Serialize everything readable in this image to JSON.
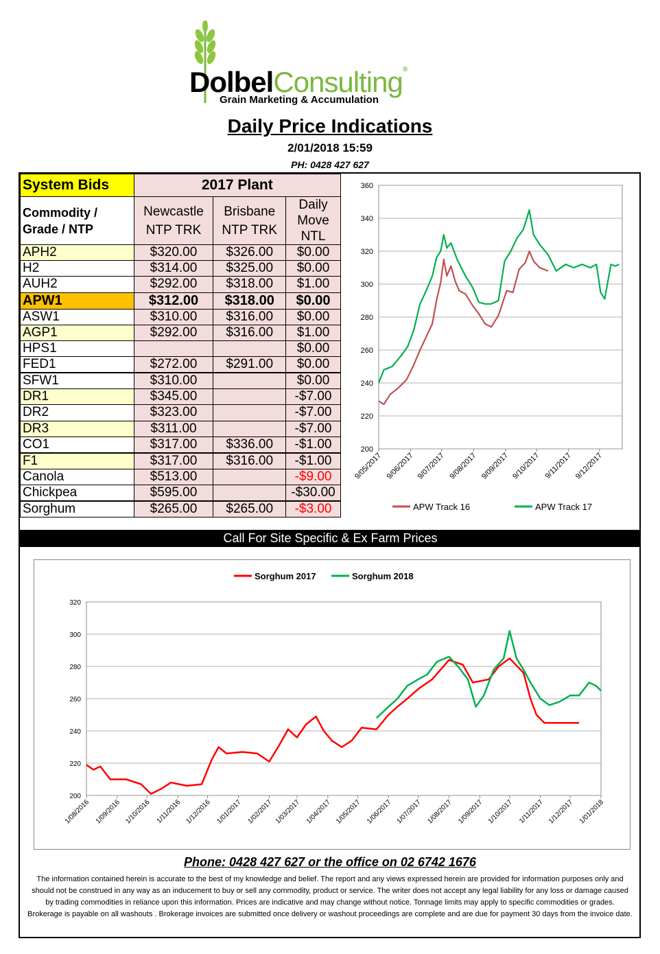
{
  "logo": {
    "brand_bold": "Dolbel",
    "brand_light": "Consulting",
    "tagline": "Grain Marketing & Accumulation",
    "mark": "®"
  },
  "title": "Daily Price Indications",
  "datetime": "2/01/2018 15:59",
  "phone_top": "PH: 0428 427 627",
  "table": {
    "system_bids": "System Bids",
    "plant": "2017 Plant",
    "col_commodity": "Commodity / Grade / NTP",
    "col_newcastle": "Newcastle NTP TRK",
    "col_brisbane": "Brisbane NTP TRK",
    "col_move": "Daily Move NTL",
    "rows": [
      {
        "grade": "APH2",
        "newcastle": "$320.00",
        "brisbane": "$326.00",
        "move": "$0.00",
        "style": "y"
      },
      {
        "grade": "H2",
        "newcastle": "$314.00",
        "brisbane": "$325.00",
        "move": "$0.00",
        "style": "g"
      },
      {
        "grade": "AUH2",
        "newcastle": "$292.00",
        "brisbane": "$318.00",
        "move": "$1.00",
        "style": "g"
      },
      {
        "grade": "APW1",
        "newcastle": "$312.00",
        "brisbane": "$318.00",
        "move": "$0.00",
        "style": "o"
      },
      {
        "grade": "ASW1",
        "newcastle": "$310.00",
        "brisbane": "$316.00",
        "move": "$0.00",
        "style": "g"
      },
      {
        "grade": "AGP1",
        "newcastle": "$292.00",
        "brisbane": "$316.00",
        "move": "$1.00",
        "style": "y"
      },
      {
        "grade": "HPS1",
        "newcastle": "",
        "brisbane": "",
        "move": "$0.00",
        "style": "g"
      },
      {
        "grade": "FED1",
        "newcastle": "$272.00",
        "brisbane": "$291.00",
        "move": "$0.00",
        "style": "g"
      },
      {
        "grade": "SFW1",
        "newcastle": "$310.00",
        "brisbane": "",
        "move": "$0.00",
        "style": "g"
      },
      {
        "grade": "DR1",
        "newcastle": "$345.00",
        "brisbane": "",
        "move": "-$7.00",
        "style": "y"
      },
      {
        "grade": "DR2",
        "newcastle": "$323.00",
        "brisbane": "",
        "move": "-$7.00",
        "style": "g"
      },
      {
        "grade": "DR3",
        "newcastle": "$311.00",
        "brisbane": "",
        "move": "-$7.00",
        "style": "y"
      },
      {
        "grade": "CO1",
        "newcastle": "$317.00",
        "brisbane": "$336.00",
        "move": "-$1.00",
        "style": "g"
      },
      {
        "grade": "F1",
        "newcastle": "$317.00",
        "brisbane": "$316.00",
        "move": "-$1.00",
        "style": "y"
      },
      {
        "grade": "Canola",
        "newcastle": "$513.00",
        "brisbane": "",
        "move": "-$9.00",
        "style": "g",
        "neg": true
      },
      {
        "grade": "Chickpea",
        "newcastle": "$595.00",
        "brisbane": "",
        "move": "-$30.00",
        "style": "g"
      },
      {
        "grade": "Sorghum",
        "newcastle": "$265.00",
        "brisbane": "$265.00",
        "move": "-$3.00",
        "style": "g",
        "neg": true
      }
    ]
  },
  "call_bar": "Call For Site Specific & Ex Farm Prices",
  "phone_bottom": "Phone: 0428 427 627 or the office on 02 6742 1676",
  "disclaimer": "The information contained herein is accurate to the best of my knowledge and belief.  The report and any views expressed herein are provided for information purposes only and should not be construed in any way as an inducement to buy or sell any commodity, product or service. The writer does not accept any legal liability for any loss or damage caused by trading commodities in reliance upon this information. Prices are indicative and may change without notice. Tonnage limits may apply to specific commodities or grades.  Brokerage is payable on all washouts . Brokerage invoices are submitted once delivery or washout proceedings are complete and are due for payment 30 days from the invoice date.",
  "chart_data": [
    {
      "type": "line",
      "ylim": [
        200,
        360
      ],
      "yticks": [
        200,
        220,
        240,
        260,
        280,
        300,
        320,
        340,
        360
      ],
      "xlim": [
        "2017-05-09",
        "2017-12-31"
      ],
      "xtick_labels": [
        "9/05/2017",
        "9/06/2017",
        "9/07/2017",
        "9/08/2017",
        "9/09/2017",
        "9/10/2017",
        "9/11/2017",
        "9/12/2017"
      ],
      "xtick_dates": [
        "2017-05-09",
        "2017-06-09",
        "2017-07-09",
        "2017-08-09",
        "2017-09-09",
        "2017-10-09",
        "2017-11-09",
        "2017-12-09"
      ],
      "legend_position": "bottom",
      "grid": true,
      "series": [
        {
          "name": "APW Track 16",
          "color": "#c0504d",
          "x": [
            "2017-05-09",
            "2017-05-14",
            "2017-05-20",
            "2017-05-28",
            "2017-06-05",
            "2017-06-12",
            "2017-06-18",
            "2017-06-24",
            "2017-06-30",
            "2017-07-04",
            "2017-07-08",
            "2017-07-11",
            "2017-07-14",
            "2017-07-18",
            "2017-07-22",
            "2017-07-26",
            "2017-08-01",
            "2017-08-08",
            "2017-08-14",
            "2017-08-20",
            "2017-08-26",
            "2017-09-02",
            "2017-09-10",
            "2017-09-16",
            "2017-09-22",
            "2017-09-28",
            "2017-10-02",
            "2017-10-06",
            "2017-10-12",
            "2017-10-20"
          ],
          "y": [
            229,
            227,
            233,
            237,
            242,
            251,
            260,
            268,
            276,
            290,
            301,
            315,
            305,
            311,
            302,
            296,
            294,
            287,
            282,
            276,
            274,
            281,
            296,
            295,
            309,
            313,
            320,
            314,
            310,
            308
          ]
        },
        {
          "name": "APW Track 17",
          "color": "#00b050",
          "x": [
            "2017-05-09",
            "2017-05-14",
            "2017-05-22",
            "2017-05-30",
            "2017-06-06",
            "2017-06-12",
            "2017-06-18",
            "2017-06-24",
            "2017-06-30",
            "2017-07-04",
            "2017-07-08",
            "2017-07-11",
            "2017-07-14",
            "2017-07-18",
            "2017-07-24",
            "2017-08-01",
            "2017-08-08",
            "2017-08-14",
            "2017-08-20",
            "2017-08-26",
            "2017-09-02",
            "2017-09-08",
            "2017-09-14",
            "2017-09-20",
            "2017-09-26",
            "2017-10-02",
            "2017-10-06",
            "2017-10-12",
            "2017-10-20",
            "2017-10-28",
            "2017-11-06",
            "2017-11-14",
            "2017-11-22",
            "2017-11-30",
            "2017-12-06",
            "2017-12-10",
            "2017-12-14",
            "2017-12-20",
            "2017-12-24",
            "2017-12-28"
          ],
          "y": [
            240,
            248,
            250,
            256,
            262,
            272,
            288,
            296,
            305,
            316,
            320,
            330,
            322,
            325,
            315,
            305,
            298,
            289,
            288,
            288,
            290,
            314,
            320,
            328,
            333,
            345,
            330,
            324,
            318,
            308,
            312,
            310,
            312,
            310,
            312,
            295,
            291,
            312,
            311,
            312
          ]
        }
      ]
    },
    {
      "type": "line",
      "ylim": [
        200,
        320
      ],
      "yticks": [
        200,
        220,
        240,
        260,
        280,
        300,
        320
      ],
      "xlim": [
        "2016-08-01",
        "2018-01-01"
      ],
      "xtick_labels": [
        "1/08/2016",
        "1/09/2016",
        "1/10/2016",
        "1/11/2016",
        "1/12/2016",
        "1/01/2017",
        "1/02/2017",
        "1/03/2017",
        "1/04/2017",
        "1/05/2017",
        "1/06/2017",
        "1/07/2017",
        "1/08/2017",
        "1/09/2017",
        "1/10/2017",
        "1/11/2017",
        "1/12/2017",
        "1/01/2018"
      ],
      "xtick_dates": [
        "2016-08-01",
        "2016-09-01",
        "2016-10-01",
        "2016-11-01",
        "2016-12-01",
        "2017-01-01",
        "2017-02-01",
        "2017-03-01",
        "2017-04-01",
        "2017-05-01",
        "2017-06-01",
        "2017-07-01",
        "2017-08-01",
        "2017-09-01",
        "2017-10-01",
        "2017-11-01",
        "2017-12-01",
        "2018-01-01"
      ],
      "legend_position": "top",
      "grid": true,
      "series": [
        {
          "name": "Sorghum 2017",
          "color": "#ff0000",
          "x": [
            "2016-08-01",
            "2016-08-08",
            "2016-08-15",
            "2016-08-25",
            "2016-09-10",
            "2016-09-25",
            "2016-10-05",
            "2016-10-15",
            "2016-10-25",
            "2016-11-10",
            "2016-11-25",
            "2016-12-05",
            "2016-12-12",
            "2016-12-20",
            "2017-01-05",
            "2017-01-20",
            "2017-02-01",
            "2017-02-10",
            "2017-02-20",
            "2017-03-01",
            "2017-03-10",
            "2017-03-20",
            "2017-03-28",
            "2017-04-05",
            "2017-04-15",
            "2017-04-25",
            "2017-05-05",
            "2017-05-20",
            "2017-06-01",
            "2017-06-10",
            "2017-06-20",
            "2017-07-01",
            "2017-07-15",
            "2017-08-01",
            "2017-08-15",
            "2017-08-25",
            "2017-09-10",
            "2017-09-20",
            "2017-10-01",
            "2017-10-15",
            "2017-10-22",
            "2017-10-28",
            "2017-11-05",
            "2017-11-20",
            "2017-12-10"
          ],
          "y": [
            219,
            216,
            218,
            210,
            210,
            207,
            201,
            204,
            208,
            206,
            207,
            222,
            230,
            226,
            227,
            226,
            221,
            230,
            241,
            236,
            244,
            249,
            240,
            234,
            230,
            234,
            242,
            241,
            250,
            255,
            260,
            266,
            272,
            284,
            281,
            270,
            272,
            280,
            285,
            276,
            260,
            250,
            245,
            245,
            245
          ]
        },
        {
          "name": "Sorghum 2018",
          "color": "#00b050",
          "x": [
            "2017-05-20",
            "2017-06-01",
            "2017-06-10",
            "2017-06-20",
            "2017-07-01",
            "2017-07-10",
            "2017-07-20",
            "2017-08-01",
            "2017-08-10",
            "2017-08-20",
            "2017-08-28",
            "2017-09-05",
            "2017-09-15",
            "2017-09-25",
            "2017-10-01",
            "2017-10-08",
            "2017-10-15",
            "2017-10-22",
            "2017-11-01",
            "2017-11-10",
            "2017-11-20",
            "2017-12-01",
            "2017-12-10",
            "2017-12-20",
            "2017-12-27",
            "2018-01-01"
          ],
          "y": [
            248,
            255,
            260,
            268,
            272,
            275,
            283,
            286,
            280,
            272,
            255,
            262,
            278,
            285,
            302,
            285,
            278,
            270,
            260,
            256,
            258,
            262,
            262,
            270,
            268,
            265
          ]
        }
      ]
    }
  ]
}
